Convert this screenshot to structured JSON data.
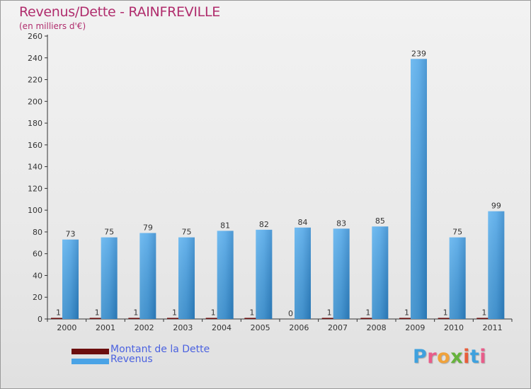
{
  "title": "Revenus/Dette - RAINFREVILLE",
  "subtitle": "(en milliers d'€)",
  "logo": {
    "text": "Proxiti",
    "colors": [
      "#3fa1de",
      "#e85d8a",
      "#f0a23b",
      "#67b33d",
      "#e85d3a",
      "#3fa1de",
      "#e85d8a"
    ]
  },
  "chart_data": {
    "type": "bar",
    "categories": [
      "2000",
      "2001",
      "2002",
      "2003",
      "2004",
      "2005",
      "2006",
      "2007",
      "2008",
      "2009",
      "2010",
      "2011"
    ],
    "series": [
      {
        "name": "Montant de la Dette",
        "color": "#6b0d0d",
        "values": [
          1,
          1,
          1,
          1,
          1,
          1,
          0,
          1,
          1,
          1,
          1,
          1
        ]
      },
      {
        "name": "Revenus",
        "color": "#4aa3e6",
        "values": [
          73,
          75,
          79,
          75,
          81,
          82,
          84,
          83,
          85,
          239,
          75,
          99
        ]
      }
    ],
    "yticks": [
      "0",
      "20",
      "40",
      "60",
      "80",
      "100",
      "120",
      "140",
      "160",
      "180",
      "200",
      "220",
      "240",
      "260"
    ],
    "ylim": [
      0,
      260
    ],
    "grid": false,
    "legend_position": "bottom-left"
  }
}
